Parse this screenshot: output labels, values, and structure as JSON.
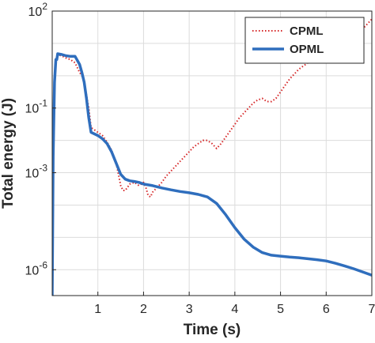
{
  "chart_data": {
    "type": "line",
    "title": "",
    "xlabel": "Time (s)",
    "ylabel": "Total energy (J)",
    "xlim": [
      0,
      7
    ],
    "ylim_exponents": [
      -6.8,
      2
    ],
    "yscale": "log",
    "grid": true,
    "legend_placement": "top-right",
    "x_ticks": [
      "1",
      "2",
      "3",
      "4",
      "5",
      "6",
      "7"
    ],
    "y_tick_exponents": [
      "2",
      "-1",
      "-3",
      "-6"
    ],
    "y_tick_base": "10",
    "series": [
      {
        "name": "CPML",
        "color": "#d62728",
        "style": "dotted",
        "x": [
          0,
          0.02,
          0.05,
          0.08,
          0.12,
          0.2,
          0.3,
          0.4,
          0.5,
          0.6,
          0.65,
          0.7,
          0.8,
          0.85,
          1.0,
          1.1,
          1.2,
          1.3,
          1.4,
          1.5,
          1.55,
          1.6,
          1.7,
          1.8,
          1.9,
          2.0,
          2.05,
          2.1,
          2.15,
          2.2,
          2.3,
          2.4,
          2.5,
          2.6,
          2.7,
          2.8,
          2.9,
          3.0,
          3.1,
          3.2,
          3.3,
          3.4,
          3.5,
          3.6,
          3.7,
          3.8,
          3.9,
          4.0,
          4.1,
          4.2,
          4.3,
          4.4,
          4.5,
          4.6,
          4.7,
          4.8,
          4.9,
          5.0,
          5.1,
          5.2,
          5.3,
          5.4,
          5.5,
          5.6,
          5.7,
          5.8,
          5.9,
          6.0,
          6.1,
          6.15,
          6.2,
          6.3,
          6.4,
          6.5,
          6.6,
          6.7,
          6.8,
          6.9,
          7.0
        ],
        "y_log10": [
          -6.8,
          -2.5,
          -0.2,
          0.5,
          0.65,
          0.62,
          0.55,
          0.5,
          0.4,
          0.1,
          0.0,
          -0.2,
          -1.0,
          -1.6,
          -1.75,
          -1.85,
          -2.05,
          -2.3,
          -2.7,
          -3.4,
          -3.55,
          -3.55,
          -3.35,
          -3.3,
          -3.4,
          -3.3,
          -3.45,
          -3.7,
          -3.75,
          -3.6,
          -3.45,
          -3.3,
          -3.1,
          -2.95,
          -2.8,
          -2.65,
          -2.5,
          -2.35,
          -2.2,
          -2.1,
          -2.0,
          -2.0,
          -2.1,
          -2.25,
          -2.1,
          -1.9,
          -1.7,
          -1.5,
          -1.3,
          -1.15,
          -1.0,
          -0.85,
          -0.75,
          -0.7,
          -0.8,
          -0.8,
          -0.7,
          -0.5,
          -0.3,
          -0.1,
          0.05,
          0.2,
          0.3,
          0.4,
          0.45,
          0.45,
          0.5,
          0.7,
          0.85,
          0.9,
          0.85,
          0.85,
          0.88,
          1.0,
          1.15,
          1.3,
          1.45,
          1.6,
          1.75
        ]
      },
      {
        "name": "OPML",
        "color": "#2f6ebd",
        "style": "solid",
        "x": [
          0,
          0.02,
          0.05,
          0.08,
          0.1,
          0.12,
          0.2,
          0.3,
          0.4,
          0.5,
          0.6,
          0.65,
          0.7,
          0.75,
          0.8,
          0.85,
          1.0,
          1.1,
          1.2,
          1.3,
          1.4,
          1.5,
          1.6,
          1.7,
          1.8,
          1.9,
          2.0,
          2.2,
          2.4,
          2.6,
          2.8,
          3.0,
          3.2,
          3.4,
          3.6,
          3.8,
          4.0,
          4.2,
          4.4,
          4.6,
          4.8,
          5.0,
          5.2,
          5.4,
          5.6,
          5.8,
          6.0,
          6.2,
          6.4,
          6.6,
          6.8,
          7.0
        ],
        "y_log10": [
          -6.8,
          -2.5,
          -0.2,
          0.5,
          0.5,
          0.68,
          0.66,
          0.62,
          0.6,
          0.6,
          0.35,
          0.1,
          -0.2,
          -0.7,
          -1.3,
          -1.75,
          -1.85,
          -1.95,
          -2.1,
          -2.35,
          -2.7,
          -3.05,
          -3.2,
          -3.25,
          -3.27,
          -3.3,
          -3.35,
          -3.4,
          -3.47,
          -3.53,
          -3.58,
          -3.62,
          -3.67,
          -3.75,
          -3.95,
          -4.3,
          -4.7,
          -5.05,
          -5.3,
          -5.47,
          -5.55,
          -5.58,
          -5.61,
          -5.63,
          -5.66,
          -5.69,
          -5.73,
          -5.8,
          -5.88,
          -5.97,
          -6.07,
          -6.17
        ]
      }
    ]
  }
}
